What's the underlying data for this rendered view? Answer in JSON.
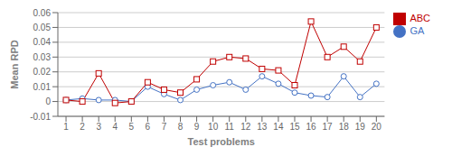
{
  "chart_data": {
    "type": "line",
    "x": [
      1,
      2,
      3,
      4,
      5,
      6,
      7,
      8,
      9,
      10,
      11,
      12,
      13,
      14,
      15,
      16,
      17,
      18,
      19,
      20
    ],
    "series": [
      {
        "name": "GA",
        "color": "#4472C4",
        "marker": "circle",
        "values": [
          0.001,
          0.002,
          0.001,
          0.001,
          0.0,
          0.01,
          0.005,
          0.001,
          0.008,
          0.011,
          0.013,
          0.008,
          0.017,
          0.012,
          0.006,
          0.004,
          0.003,
          0.017,
          0.003,
          0.012
        ]
      },
      {
        "name": "ABC",
        "color": "#C00000",
        "marker": "square",
        "values": [
          0.001,
          0.0,
          0.019,
          -0.001,
          0.0,
          0.013,
          0.008,
          0.006,
          0.015,
          0.027,
          0.03,
          0.029,
          0.022,
          0.021,
          0.011,
          0.054,
          0.03,
          0.037,
          0.027,
          0.05
        ]
      }
    ],
    "xlabel": "Test problems",
    "ylabel": "Mean RPD",
    "xlim": [
      0.5,
      20.5
    ],
    "xticks": [
      1,
      2,
      3,
      4,
      5,
      6,
      7,
      8,
      9,
      10,
      11,
      12,
      13,
      14,
      15,
      16,
      17,
      18,
      19,
      20
    ],
    "ylim": [
      -0.01,
      0.06
    ],
    "yticks": [
      -0.01,
      0,
      0.01,
      0.02,
      0.03,
      0.04,
      0.05,
      0.06
    ],
    "grid": true,
    "legend": "right"
  }
}
